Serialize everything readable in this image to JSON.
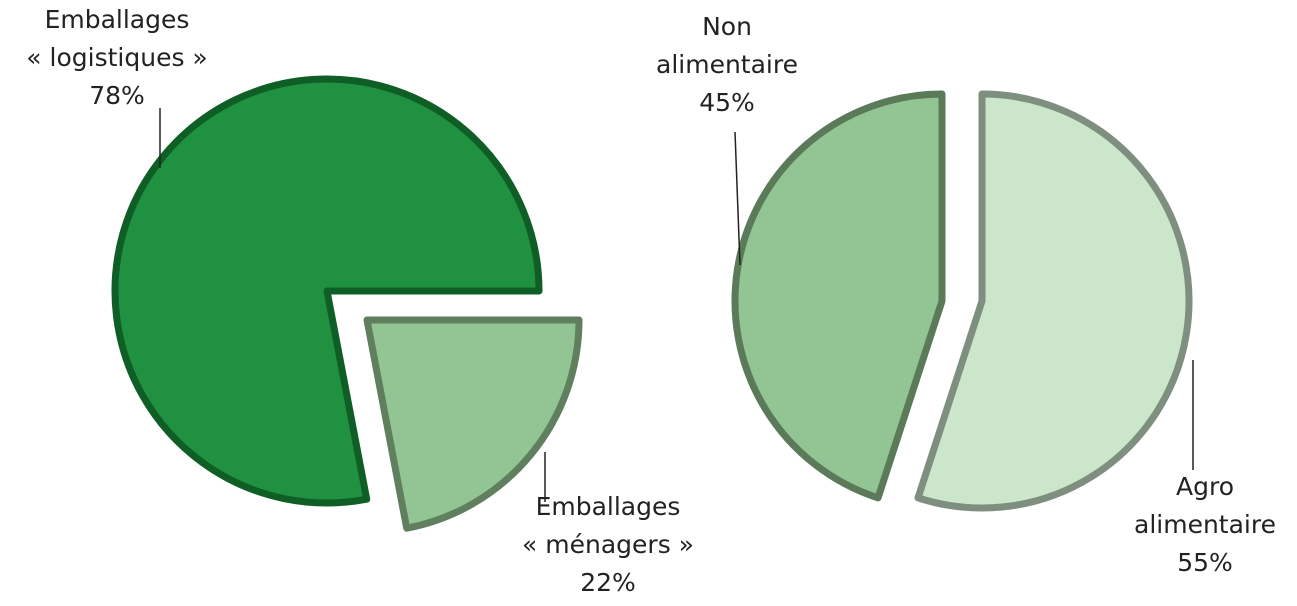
{
  "chart_data": [
    {
      "type": "pie",
      "categories": [
        "Emballages\n« logistiques »",
        "Emballages\n« ménagers »"
      ],
      "values": [
        78,
        22
      ],
      "value_labels": [
        "78%",
        "22%"
      ],
      "colors": [
        "#1f9140",
        "#93c493"
      ],
      "edge_colors": [
        "#0f5e26",
        "#5f7f5f"
      ]
    },
    {
      "type": "pie",
      "categories": [
        "Non\nalimentaire",
        "Agro\nalimentaire"
      ],
      "values": [
        45,
        55
      ],
      "value_labels": [
        "45%",
        "55%"
      ],
      "colors": [
        "#93c493",
        "#cbe6cb"
      ],
      "edge_colors": [
        "#5a7a5a",
        "#7f8f7f"
      ]
    }
  ]
}
